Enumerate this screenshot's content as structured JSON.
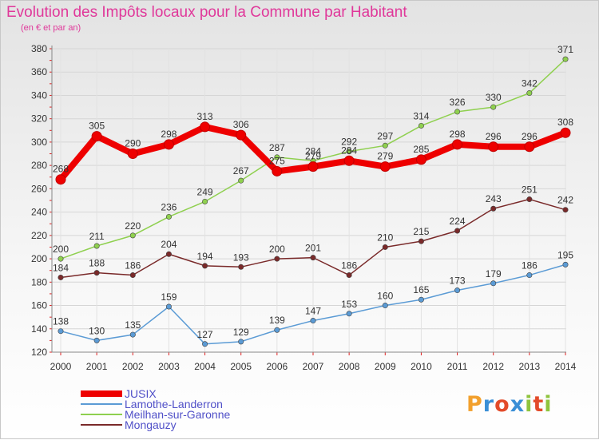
{
  "title": "Evolution des Impôts locaux pour la Commune par Habitant",
  "subtitle": "(en € et par an)",
  "logo": [
    "P",
    "r",
    "o",
    "x",
    "i",
    "t",
    "i"
  ],
  "logo_colors": [
    "#f2a02d",
    "#3a8fd6",
    "#e34b2a",
    "#3a8fd6",
    "#8fc43e",
    "#e34b2a",
    "#8fc43e"
  ],
  "chart_data": {
    "type": "line",
    "x": [
      "2000",
      "2001",
      "2002",
      "2003",
      "2004",
      "2005",
      "2006",
      "2007",
      "2008",
      "2009",
      "2010",
      "2011",
      "2012",
      "2013",
      "2014"
    ],
    "ylim": [
      120,
      380
    ],
    "yticks": [
      120,
      140,
      160,
      180,
      200,
      220,
      240,
      260,
      280,
      300,
      320,
      340,
      360,
      380
    ],
    "grid": true,
    "legend_position": "bottom-left",
    "series": [
      {
        "name": "JUSIX",
        "color": "#ee0000",
        "values": [
          268,
          305,
          290,
          298,
          313,
          306,
          275,
          279,
          284,
          279,
          285,
          298,
          296,
          296,
          308
        ]
      },
      {
        "name": "Lamothe-Landerron",
        "color": "#5b9bd5",
        "values": [
          138,
          130,
          135,
          159,
          127,
          129,
          139,
          147,
          153,
          160,
          165,
          173,
          179,
          186,
          195
        ]
      },
      {
        "name": "Meilhan-sur-Garonne",
        "color": "#8fd04f",
        "values": [
          200,
          211,
          220,
          236,
          249,
          267,
          287,
          284,
          292,
          297,
          314,
          326,
          330,
          342,
          371
        ]
      },
      {
        "name": "Mongauzy",
        "color": "#7a2a2a",
        "values": [
          184,
          188,
          186,
          204,
          194,
          193,
          200,
          201,
          186,
          210,
          215,
          224,
          243,
          251,
          242
        ]
      }
    ]
  }
}
